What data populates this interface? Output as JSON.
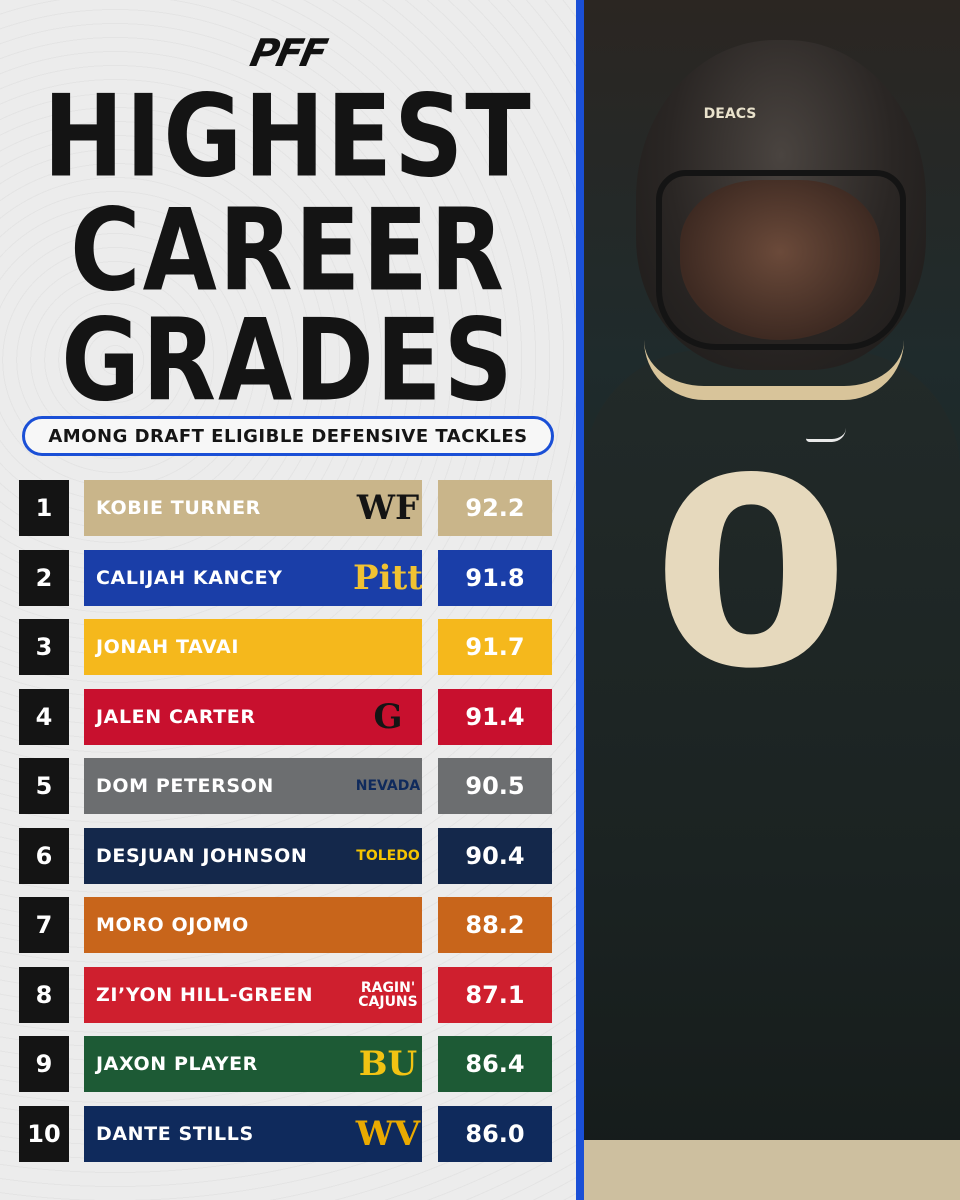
{
  "brand": "PFF",
  "title_lines": [
    "HIGHEST",
    "CAREER",
    "GRADES"
  ],
  "subtitle": "AMONG DRAFT ELIGIBLE DEFENSIVE TACKLES",
  "rows": [
    {
      "rank": "1",
      "name": "KOBIE TURNER",
      "grade": "92.2",
      "school_mark": "WF",
      "bar_color": "#c9b58a",
      "grade_color": "#c9b58a",
      "mark_color": "#141414",
      "mark_icon": "wake-forest-logo-icon"
    },
    {
      "rank": "2",
      "name": "CALIJAH KANCEY",
      "grade": "91.8",
      "school_mark": "Pitt",
      "bar_color": "#1a3ea8",
      "grade_color": "#1a3ea8",
      "mark_color": "#f1c232",
      "mark_icon": "pitt-logo-icon"
    },
    {
      "rank": "3",
      "name": "JONAH TAVAI",
      "grade": "91.7",
      "school_mark": "",
      "bar_color": "#f5b81c",
      "grade_color": "#f5b81c",
      "mark_color": "#1a3ea8",
      "mark_icon": "san-jose-state-spartan-icon"
    },
    {
      "rank": "4",
      "name": "JALEN CARTER",
      "grade": "91.4",
      "school_mark": "G",
      "bar_color": "#c8102e",
      "grade_color": "#c8102e",
      "mark_color": "#141414",
      "mark_icon": "georgia-logo-icon"
    },
    {
      "rank": "5",
      "name": "DOM PETERSON",
      "grade": "90.5",
      "school_mark": "NEVADA",
      "bar_color": "#6c6e70",
      "grade_color": "#6c6e70",
      "mark_color": "#0f2a5c",
      "mark_icon": "nevada-wolf-icon"
    },
    {
      "rank": "6",
      "name": "DESJUAN JOHNSON",
      "grade": "90.4",
      "school_mark": "TOLEDO",
      "bar_color": "#14284b",
      "grade_color": "#14284b",
      "mark_color": "#f5c400",
      "mark_icon": "toledo-logo-icon"
    },
    {
      "rank": "7",
      "name": "MORO OJOMO",
      "grade": "88.2",
      "school_mark": "",
      "bar_color": "#c8651b",
      "grade_color": "#c8651b",
      "mark_color": "#ffffff",
      "mark_icon": "texas-longhorn-icon"
    },
    {
      "rank": "8",
      "name": "ZI’YON HILL-GREEN",
      "grade": "87.1",
      "school_mark": "RAGIN' CAJUNS",
      "bar_color": "#cf1f2e",
      "grade_color": "#cf1f2e",
      "mark_color": "#ffffff",
      "mark_icon": "louisiana-ragin-cajuns-icon"
    },
    {
      "rank": "9",
      "name": "JAXON PLAYER",
      "grade": "86.4",
      "school_mark": "BU",
      "bar_color": "#1d5a35",
      "grade_color": "#1d5a35",
      "mark_color": "#f2c313",
      "mark_icon": "baylor-logo-icon"
    },
    {
      "rank": "10",
      "name": "DANTE STILLS",
      "grade": "86.0",
      "school_mark": "WV",
      "bar_color": "#0f2a5c",
      "grade_color": "#0f2a5c",
      "mark_color": "#eaaa00",
      "mark_icon": "west-virginia-logo-icon"
    }
  ],
  "photo": {
    "helmet_text": "DEACS",
    "jersey_number": "0"
  },
  "colors": {
    "accent_blue": "#1a4fd6",
    "rank_bg": "#141414"
  }
}
